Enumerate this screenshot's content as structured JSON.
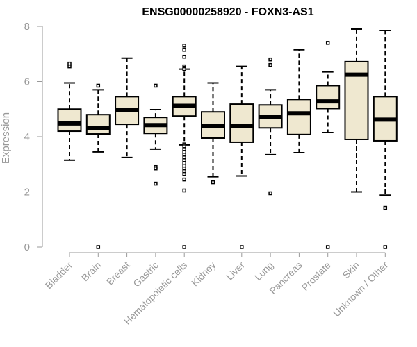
{
  "chart_data": {
    "type": "boxplot",
    "title": "ENSG00000258920 - FOXN3-AS1",
    "xlabel": "",
    "ylabel": "Expression",
    "ylim": [
      0,
      8
    ],
    "yticks": [
      0,
      2,
      4,
      6,
      8
    ],
    "categories": [
      "Bladder",
      "Brain",
      "Breast",
      "Gastric",
      "Hematopoietic cells",
      "Kidney",
      "Liver",
      "Lung",
      "Pancreas",
      "Prostate",
      "Skin",
      "Unknown / Other"
    ],
    "boxes": [
      {
        "name": "Bladder",
        "whisker_low": 3.15,
        "q1": 4.2,
        "median": 4.48,
        "q3": 5.0,
        "whisker_high": 5.95,
        "outliers": [
          6.55,
          6.65
        ]
      },
      {
        "name": "Brain",
        "whisker_low": 3.45,
        "q1": 4.1,
        "median": 4.32,
        "q3": 4.8,
        "whisker_high": 5.7,
        "outliers": [
          5.85,
          0.0
        ]
      },
      {
        "name": "Breast",
        "whisker_low": 3.25,
        "q1": 4.45,
        "median": 4.98,
        "q3": 5.45,
        "whisker_high": 6.85,
        "outliers": []
      },
      {
        "name": "Gastric",
        "whisker_low": 3.55,
        "q1": 4.12,
        "median": 4.42,
        "q3": 4.7,
        "whisker_high": 4.98,
        "outliers": [
          5.85,
          2.9,
          2.85,
          2.3
        ]
      },
      {
        "name": "Hematopoietic cells",
        "whisker_low": 3.7,
        "q1": 4.75,
        "median": 5.12,
        "q3": 5.45,
        "whisker_high": 6.45,
        "outliers": [
          7.3,
          7.15,
          6.9,
          6.55,
          6.5,
          6.45,
          3.72,
          3.65,
          3.55,
          3.45,
          3.35,
          3.25,
          3.15,
          3.05,
          2.95,
          2.85,
          2.75,
          2.65,
          2.45,
          2.05,
          0.0
        ]
      },
      {
        "name": "Kidney",
        "whisker_low": 2.55,
        "q1": 3.95,
        "median": 4.38,
        "q3": 4.9,
        "whisker_high": 5.95,
        "outliers": [
          2.35
        ]
      },
      {
        "name": "Liver",
        "whisker_low": 2.58,
        "q1": 3.8,
        "median": 4.38,
        "q3": 5.18,
        "whisker_high": 6.55,
        "outliers": [
          0.0
        ]
      },
      {
        "name": "Lung",
        "whisker_low": 3.35,
        "q1": 4.32,
        "median": 4.72,
        "q3": 5.15,
        "whisker_high": 5.7,
        "outliers": [
          6.8,
          6.6,
          1.95
        ]
      },
      {
        "name": "Pancreas",
        "whisker_low": 3.42,
        "q1": 4.08,
        "median": 4.85,
        "q3": 5.35,
        "whisker_high": 7.15,
        "outliers": []
      },
      {
        "name": "Prostate",
        "whisker_low": 4.15,
        "q1": 5.02,
        "median": 5.28,
        "q3": 5.85,
        "whisker_high": 6.35,
        "outliers": [
          7.4,
          0.0
        ]
      },
      {
        "name": "Skin",
        "whisker_low": 2.0,
        "q1": 3.9,
        "median": 6.25,
        "q3": 6.72,
        "whisker_high": 7.9,
        "outliers": []
      },
      {
        "name": "Unknown / Other",
        "whisker_low": 1.88,
        "q1": 3.85,
        "median": 4.62,
        "q3": 5.45,
        "whisker_high": 7.85,
        "outliers": [
          1.42,
          0.0
        ]
      }
    ],
    "colors": {
      "box_fill": "#efe8d0",
      "stroke": "#000000",
      "axis": "#999999"
    }
  }
}
